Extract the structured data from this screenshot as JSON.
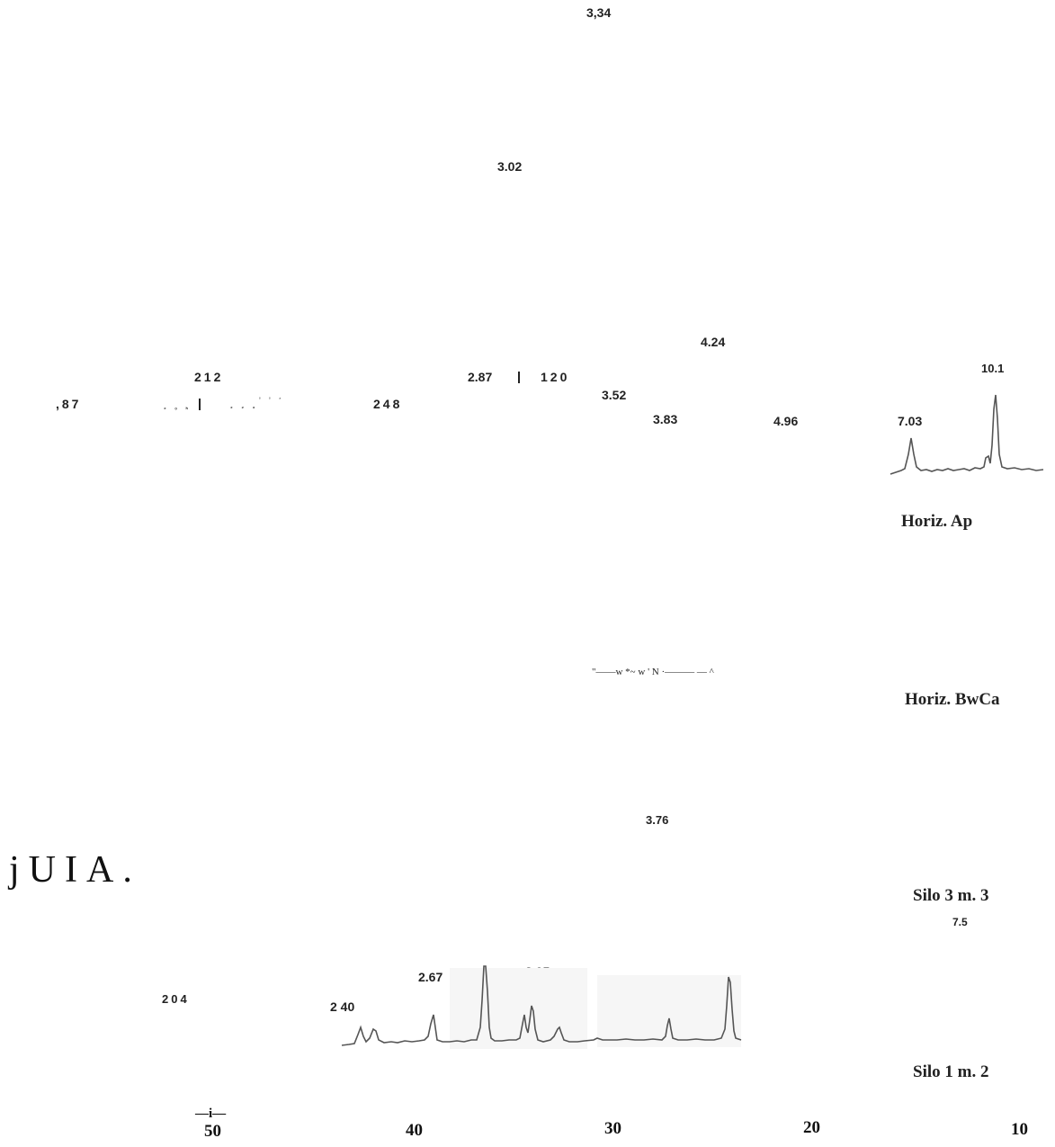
{
  "chart_data": {
    "type": "line",
    "title": "",
    "xlabel": "",
    "ylabel": "",
    "x_axis": {
      "direction": "descending",
      "ticks": [
        50,
        40,
        30,
        20,
        10
      ],
      "tick_labels": [
        "50",
        "40",
        "30",
        "20",
        "10"
      ],
      "mark_above_50": "—i—"
    },
    "series": [
      {
        "name": "Horiz. Ap",
        "peak_labels": [
          "3,34",
          "3.02",
          "4.24",
          "212",
          "10.1",
          "2.87",
          "120",
          "3.52",
          ",87",
          "248",
          "3.83",
          "4.96",
          "7.03"
        ],
        "peaks": [
          {
            "d": "7.03",
            "two_theta": 12.6,
            "intensity": 0.45
          },
          {
            "d": "10.1",
            "two_theta": 8.8,
            "intensity": 1.0
          }
        ]
      },
      {
        "name": "Horiz. BwCa",
        "peak_labels": []
      },
      {
        "name": "Silo 3 m. 3",
        "peak_labels": [
          "3.76",
          "7.5"
        ]
      },
      {
        "name": "Silo 1 m. 2",
        "peak_labels": [
          "204",
          "2.67",
          "3 05",
          "2 40"
        ],
        "peaks": [
          {
            "d": "2 40",
            "two_theta": 37.4,
            "intensity": 0.2
          },
          {
            "d": "2 40",
            "two_theta": 36.6,
            "intensity": 0.18
          },
          {
            "d": "2.67",
            "two_theta": 33.5,
            "intensity": 0.55
          },
          {
            "d": "3 05",
            "two_theta": 29.3,
            "intensity": 1.0
          },
          {
            "d": "3 05",
            "two_theta": 28.1,
            "intensity": 0.45
          },
          {
            "d": "3 05",
            "two_theta": 27.5,
            "intensity": 0.6
          },
          {
            "d": "3 05",
            "two_theta": 26.3,
            "intensity": 0.22
          },
          {
            "d": "3.76",
            "two_theta": 23.6,
            "intensity": 0.35
          },
          {
            "d": "7.5",
            "two_theta": 21.6,
            "intensity": 0.85
          }
        ]
      }
    ],
    "scan_text": {
      "small_a": "₂ ₒ ₕ",
      "small_b": "₂ ₂ ₃",
      "small_b_sup": "² ² ⁷",
      "noise_line": "\"——w      *~      w ' N ·———  —  ^",
      "stray_text": "jUIA."
    }
  }
}
